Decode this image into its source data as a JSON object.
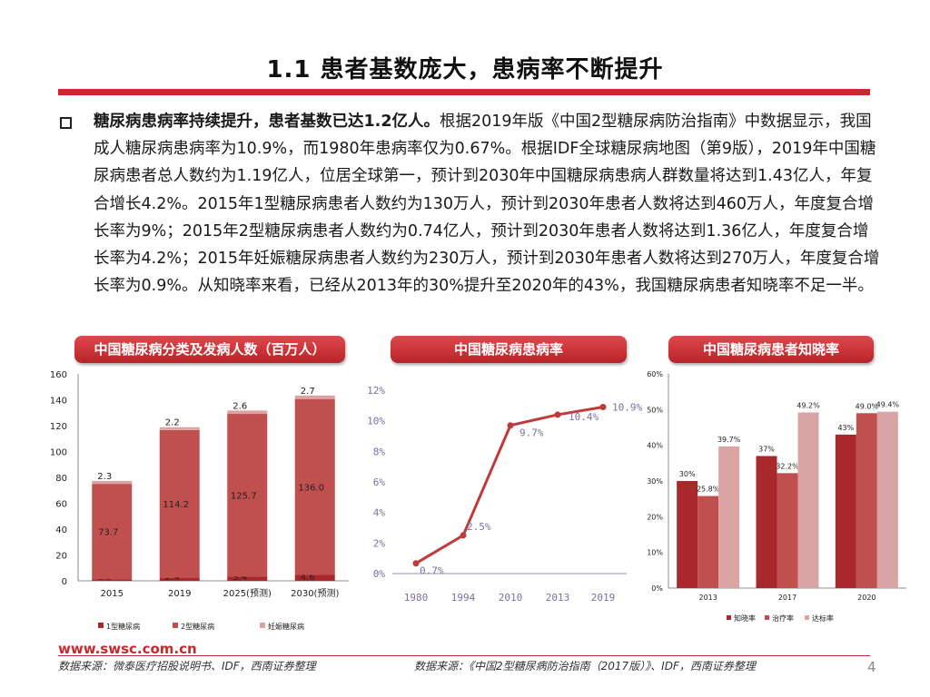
{
  "title": "1.1 患者基数庞大，患病率不断提升",
  "paragraph": {
    "lead": "糖尿病患病率持续提升，患者基数已达1.2亿人。",
    "body": "根据2019年版《中国2型糖尿病防治指南》中数据显示，我国成人糖尿病患病率为10.9%，而1980年患病率仅为0.67%。根据IDF全球糖尿病地图（第9版），2019年中国糖尿病患者总人数约为1.19亿人，位居全球第一，预计到2030年中国糖尿病患病人群数量将达到1.43亿人，年复合增长4.2%。2015年1型糖尿病患者人数约为130万人，预计到2030年患者人数将达到460万人，年度复合增长率为9%；2015年2型糖尿病患者人数约为0.74亿人，预计到2030年患者人数将达到1.36亿人，年度复合增长率为4.2%；2015年妊娠糖尿病患者人数约为230万人，预计到2030年患者人数将达到270万人，年度复合增长率为0.9%。从知晓率来看，已经从2013年的30%提升至2020年的43%，我国糖尿病患者知晓率不足一半。"
  },
  "chart_titles": {
    "left": "中国糖尿病分类及发病人数（百万人）",
    "middle": "中国糖尿病患病率",
    "right": "中国糖尿病患者知晓率"
  },
  "colors": {
    "accent": "#c8282e",
    "type1": "#a8282c",
    "type2": "#c0504d",
    "gestational": "#dba4a4",
    "line": "#c0393b"
  },
  "chart_data": [
    {
      "type": "bar",
      "stacked": true,
      "title": "中国糖尿病分类及发病人数（百万人）",
      "categories": [
        "2015",
        "2019",
        "2025(预测)",
        "2030(预测)"
      ],
      "series": [
        {
          "name": "1型糖尿病",
          "values": [
            1.3,
            2.4,
            3.4,
            4.6
          ],
          "labels": [
            "1.3",
            "2.4",
            "3.4",
            "4.6"
          ]
        },
        {
          "name": "2型糖尿病",
          "values": [
            73.7,
            114.2,
            125.7,
            136.0
          ],
          "labels": [
            "73.7",
            "114.2",
            "125.7",
            "136.0"
          ]
        },
        {
          "name": "妊娠糖尿病",
          "values": [
            2.3,
            2.2,
            2.6,
            2.7
          ],
          "labels": [
            "2.3",
            "2.2",
            "2.6",
            "2.7"
          ]
        }
      ],
      "ylim": [
        0,
        160
      ],
      "yticks": [
        "0",
        "20",
        "40",
        "60",
        "80",
        "100",
        "120",
        "140",
        "160"
      ],
      "legend": "bottom"
    },
    {
      "type": "line",
      "title": "中国糖尿病患病率",
      "categories": [
        "1980",
        "1994",
        "2010",
        "2013",
        "2019"
      ],
      "values": [
        0.67,
        2.5,
        9.7,
        10.4,
        10.9
      ],
      "labels": [
        "0.7%",
        "2.5%",
        "9.7%",
        "10.4%",
        "10.9%"
      ],
      "ylim": [
        0,
        12
      ],
      "yticks": [
        "0%",
        "2%",
        "4%",
        "6%",
        "8%",
        "10%",
        "12%"
      ]
    },
    {
      "type": "bar",
      "title": "中国糖尿病患者知晓率",
      "categories": [
        "2013",
        "2017",
        "2020"
      ],
      "series": [
        {
          "name": "知晓率",
          "values": [
            30,
            37,
            43
          ],
          "labels": [
            "30%",
            "37%",
            "43%"
          ]
        },
        {
          "name": "治疗率",
          "values": [
            25.8,
            32.2,
            49.0
          ],
          "labels": [
            "25.8%",
            "32.2%",
            "49.0%"
          ]
        },
        {
          "name": "达标率",
          "values": [
            39.7,
            49.2,
            49.4
          ],
          "labels": [
            "39.7%",
            "49.2%",
            "49.4%"
          ]
        }
      ],
      "ylim": [
        0,
        60
      ],
      "yticks": [
        "0%",
        "10%",
        "20%",
        "30%",
        "40%",
        "50%",
        "60%"
      ],
      "legend": "bottom"
    }
  ],
  "footer": {
    "site": "www.swsc.com.cn",
    "source_left": "数据来源：微泰医疗招股说明书、IDF，西南证券整理",
    "source_right": "数据来源：《中国2型糖尿病防治指南（2017版）》、IDF，西南证券整理",
    "page": "4"
  }
}
